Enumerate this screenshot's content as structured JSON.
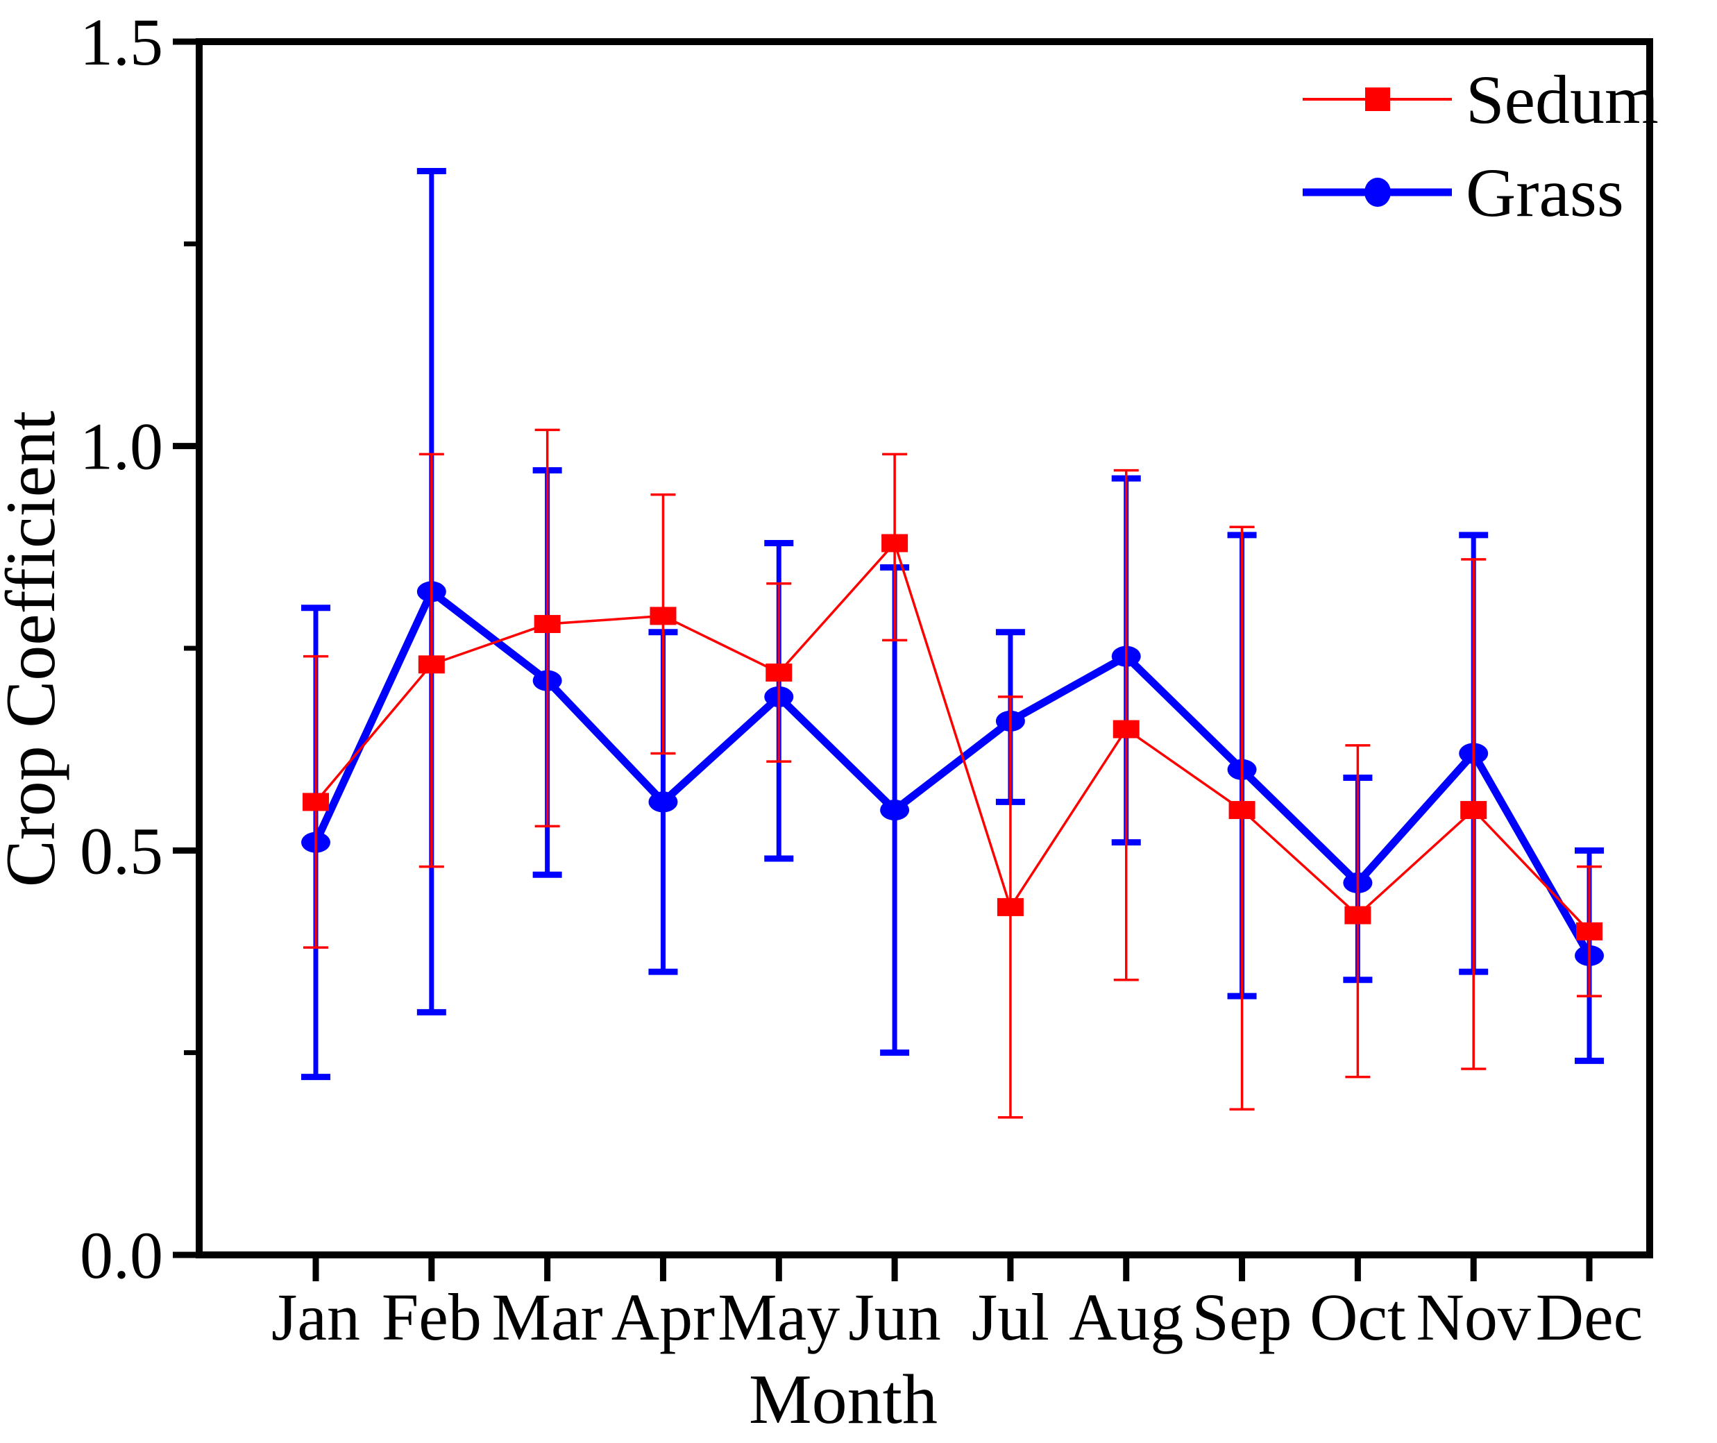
{
  "chart_data": {
    "type": "line",
    "title": "",
    "xlabel": "Month",
    "ylabel": "Crop Coefficient",
    "categories": [
      "Jan",
      "Feb",
      "Mar",
      "Apr",
      "May",
      "Jun",
      "Jul",
      "Aug",
      "Sep",
      "Oct",
      "Nov",
      "Dec"
    ],
    "y_axis": {
      "min": 0.0,
      "max": 1.5,
      "major_ticks": [
        0.0,
        0.5,
        1.0,
        1.5
      ],
      "tick_labels": [
        "0.0",
        "0.5",
        "1.0",
        "1.5"
      ],
      "minor_tick_step": 0.25,
      "grid": "off"
    },
    "legend": {
      "position": "top-right",
      "entries": [
        {
          "label": "Sedum",
          "marker": "square",
          "color": "#ff0000"
        },
        {
          "label": "Grass",
          "marker": "circle",
          "color": "#0000ff"
        }
      ]
    },
    "series": [
      {
        "name": "Grass",
        "color": "#0000ff",
        "marker": "circle",
        "values": [
          0.51,
          0.82,
          0.71,
          0.56,
          0.69,
          0.55,
          0.66,
          0.74,
          0.6,
          0.46,
          0.62,
          0.37
        ],
        "error_low": [
          0.22,
          0.3,
          0.47,
          0.35,
          0.49,
          0.25,
          0.56,
          0.51,
          0.32,
          0.34,
          0.35,
          0.24
        ],
        "error_high": [
          0.8,
          1.34,
          0.97,
          0.77,
          0.88,
          0.85,
          0.77,
          0.96,
          0.89,
          0.59,
          0.89,
          0.5
        ]
      },
      {
        "name": "Sedum",
        "color": "#ff0000",
        "marker": "square",
        "values": [
          0.56,
          0.73,
          0.78,
          0.79,
          0.72,
          0.88,
          0.43,
          0.65,
          0.55,
          0.42,
          0.55,
          0.4
        ],
        "error_low": [
          0.38,
          0.48,
          0.53,
          0.62,
          0.61,
          0.76,
          0.17,
          0.34,
          0.18,
          0.22,
          0.23,
          0.32
        ],
        "error_high": [
          0.74,
          0.99,
          1.02,
          0.94,
          0.83,
          0.99,
          0.69,
          0.97,
          0.9,
          0.63,
          0.86,
          0.48
        ]
      }
    ]
  }
}
